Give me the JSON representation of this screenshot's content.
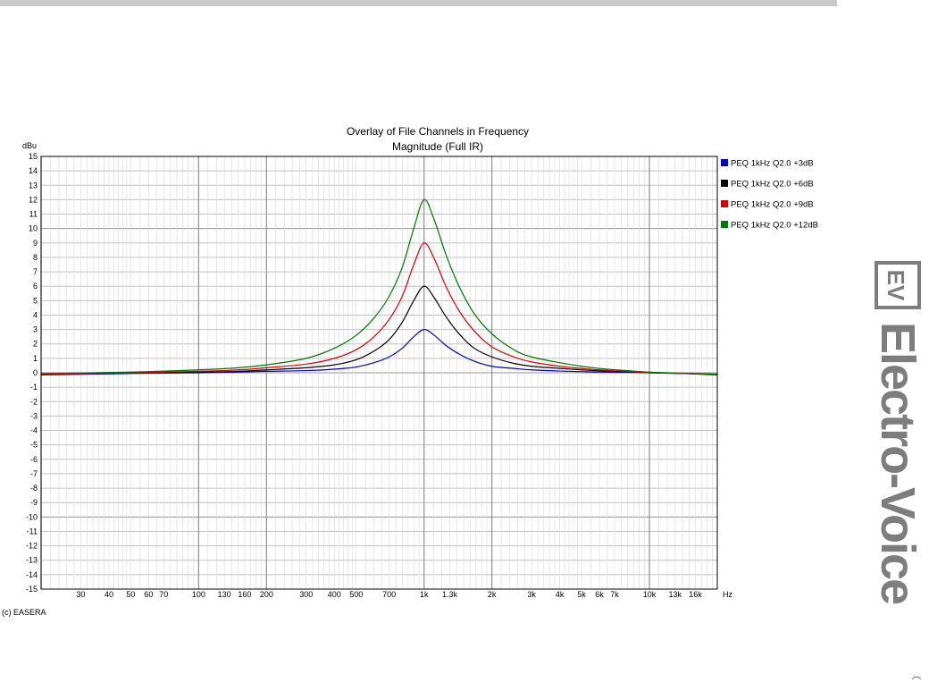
{
  "chart_data": {
    "type": "line",
    "title": "Overlay of File Channels in Frequency",
    "subtitle": "Magnitude (Full IR)",
    "ylabel": "dBu",
    "xlabel": "Hz",
    "xscale": "log",
    "xlim": [
      20,
      20000
    ],
    "ylim": [
      -15,
      15
    ],
    "grid": true,
    "legend_position": "right",
    "x_tick_labels": [
      {
        "value": 30,
        "label": "30"
      },
      {
        "value": 40,
        "label": "40"
      },
      {
        "value": 50,
        "label": "50"
      },
      {
        "value": 60,
        "label": "60"
      },
      {
        "value": 70,
        "label": "70"
      },
      {
        "value": 100,
        "label": "100"
      },
      {
        "value": 130,
        "label": "130"
      },
      {
        "value": 160,
        "label": "160"
      },
      {
        "value": 200,
        "label": "200"
      },
      {
        "value": 300,
        "label": "300"
      },
      {
        "value": 400,
        "label": "400"
      },
      {
        "value": 500,
        "label": "500"
      },
      {
        "value": 700,
        "label": "700"
      },
      {
        "value": 1000,
        "label": "1k"
      },
      {
        "value": 1300,
        "label": "1.3k"
      },
      {
        "value": 2000,
        "label": "2k"
      },
      {
        "value": 3000,
        "label": "3k"
      },
      {
        "value": 4000,
        "label": "4k"
      },
      {
        "value": 5000,
        "label": "5k"
      },
      {
        "value": 6000,
        "label": "6k"
      },
      {
        "value": 7000,
        "label": "7k"
      },
      {
        "value": 10000,
        "label": "10k"
      },
      {
        "value": 13000,
        "label": "13k"
      },
      {
        "value": 16000,
        "label": "16k"
      }
    ],
    "y_ticks": [
      15,
      14,
      13,
      12,
      11,
      10,
      9,
      8,
      7,
      6,
      5,
      4,
      3,
      2,
      1,
      0,
      -1,
      -2,
      -3,
      -4,
      -5,
      -6,
      -7,
      -8,
      -9,
      -10,
      -11,
      -12,
      -13,
      -14,
      -15
    ],
    "x": [
      20,
      50,
      100,
      150,
      200,
      300,
      400,
      500,
      600,
      700,
      800,
      900,
      1000,
      1110,
      1250,
      1430,
      1670,
      2000,
      2500,
      3000,
      4000,
      5000,
      6000,
      8000,
      10000,
      14000,
      20000
    ],
    "series": [
      {
        "name": "PEQ 1kHz Q2.0 +3dB",
        "color": "#0000cc",
        "values": [
          -0.15,
          -0.05,
          0.0,
          0.05,
          0.1,
          0.15,
          0.25,
          0.4,
          0.7,
          1.1,
          1.7,
          2.5,
          3.0,
          2.6,
          1.9,
          1.3,
          0.8,
          0.45,
          0.3,
          0.2,
          0.12,
          0.08,
          0.05,
          0.03,
          0.0,
          -0.05,
          -0.15
        ]
      },
      {
        "name": "PEQ 1kHz Q2.0 +6dB",
        "color": "#000000",
        "values": [
          -0.1,
          0.0,
          0.05,
          0.1,
          0.2,
          0.35,
          0.55,
          0.9,
          1.5,
          2.3,
          3.5,
          5.0,
          6.0,
          5.2,
          3.9,
          2.7,
          1.7,
          1.1,
          0.65,
          0.45,
          0.3,
          0.2,
          0.13,
          0.07,
          0.0,
          -0.05,
          -0.1
        ]
      },
      {
        "name": "PEQ 1kHz Q2.0 +9dB",
        "color": "#dd0000",
        "values": [
          -0.1,
          0.0,
          0.1,
          0.2,
          0.35,
          0.6,
          1.0,
          1.6,
          2.5,
          3.7,
          5.3,
          7.5,
          9.0,
          7.9,
          6.0,
          4.3,
          2.9,
          1.8,
          1.1,
          0.75,
          0.45,
          0.3,
          0.2,
          0.1,
          0.02,
          -0.05,
          -0.1
        ]
      },
      {
        "name": "PEQ 1kHz Q2.0 +12dB",
        "color": "#007700",
        "values": [
          -0.05,
          0.05,
          0.2,
          0.35,
          0.55,
          1.0,
          1.7,
          2.6,
          3.8,
          5.3,
          7.3,
          10.0,
          12.0,
          10.6,
          8.2,
          6.0,
          4.1,
          2.7,
          1.6,
          1.1,
          0.7,
          0.45,
          0.3,
          0.15,
          0.05,
          -0.03,
          -0.1
        ]
      }
    ],
    "copyright": "(c) EASERA"
  },
  "logo": {
    "icon_name": "ev-logo-icon",
    "badge_text": "EV",
    "brand_text": "Electro-Voice",
    "registered_mark": "R"
  },
  "colors": {
    "top_rule": "#c9c9c9",
    "grid": "#c0c0c0",
    "grid_major": "#909090",
    "logo_gray": "#7d7d7d"
  }
}
